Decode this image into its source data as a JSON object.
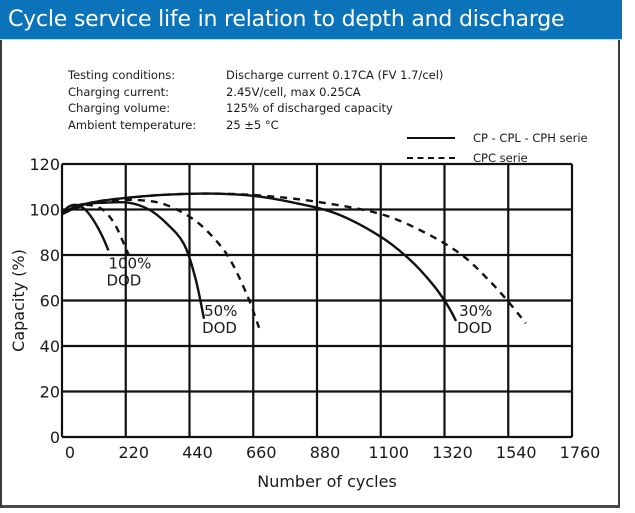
{
  "title": "Cycle service life in relation to depth and discharge",
  "conditions": [
    {
      "label": "Testing conditions:",
      "value": "Discharge current 0.17CA (FV 1.7/cel)"
    },
    {
      "label": "Charging current:",
      "value": "2.45V/cell, max 0.25CA"
    },
    {
      "label": "Charging volume:",
      "value": "125% of discharged capacity"
    },
    {
      "label": "Ambient temperature:",
      "value": "25 ±5 °C"
    }
  ],
  "legend": [
    {
      "label": "CP - CPL - CPH serie",
      "style": "solid"
    },
    {
      "label": "CPC serie",
      "style": "dashed"
    }
  ],
  "colors": {
    "title_bar": "#0a73b9",
    "title_text": "#ffffff",
    "lines": "#111111",
    "grid": "#111111"
  },
  "chart_data": {
    "type": "line",
    "title": "Cycle service life in relation to depth and discharge",
    "xlabel": "Number of cycles",
    "ylabel": "Capacity (%)",
    "xlim": [
      0,
      1760
    ],
    "ylim": [
      0,
      120
    ],
    "xticks": [
      0,
      220,
      440,
      660,
      880,
      1100,
      1320,
      1540,
      1760
    ],
    "yticks": [
      0,
      20,
      40,
      60,
      80,
      100,
      120
    ],
    "grid": true,
    "legend_position": "top-right",
    "series": [
      {
        "name": "CP - CPL - CPH serie, 100% DOD",
        "style": "solid",
        "x": [
          0,
          20,
          50,
          80,
          110,
          140,
          160
        ],
        "y": [
          98,
          101,
          102,
          100,
          95,
          88,
          82
        ]
      },
      {
        "name": "CPC serie, 100% DOD",
        "style": "dashed",
        "x": [
          0,
          40,
          90,
          140,
          180,
          210,
          230
        ],
        "y": [
          98,
          101,
          102,
          100,
          94,
          86,
          80
        ]
      },
      {
        "name": "CP - CPL - CPH serie, 50% DOD",
        "style": "solid",
        "x": [
          0,
          60,
          150,
          230,
          300,
          360,
          420,
          460,
          490
        ],
        "y": [
          98,
          102,
          103,
          103,
          100,
          94,
          85,
          70,
          52
        ]
      },
      {
        "name": "CPC serie, 50% DOD",
        "style": "dashed",
        "x": [
          0,
          80,
          180,
          280,
          360,
          450,
          520,
          580,
          640,
          680
        ],
        "y": [
          98,
          102,
          104,
          104,
          102,
          96,
          88,
          78,
          62,
          48
        ]
      },
      {
        "name": "CP - CPL - CPH serie, 30% DOD",
        "style": "solid",
        "x": [
          0,
          100,
          300,
          500,
          660,
          800,
          950,
          1100,
          1200,
          1280,
          1330,
          1360
        ],
        "y": [
          98,
          103,
          106,
          107,
          106,
          103,
          98,
          88,
          78,
          67,
          58,
          51
        ]
      },
      {
        "name": "CPC serie, 30% DOD",
        "style": "dashed",
        "x": [
          0,
          100,
          300,
          500,
          700,
          900,
          1100,
          1250,
          1380,
          1480,
          1550,
          1600
        ],
        "y": [
          98,
          103,
          106,
          107,
          106,
          103,
          98,
          90,
          80,
          68,
          58,
          50
        ]
      }
    ],
    "annotations": [
      {
        "text_line1": "100%",
        "text_line2": "DOD",
        "x": 150,
        "y": 75
      },
      {
        "text_line1": "50%",
        "text_line2": "DOD",
        "x": 480,
        "y": 54
      },
      {
        "text_line1": "30%",
        "text_line2": "DOD",
        "x": 1360,
        "y": 54
      }
    ]
  }
}
